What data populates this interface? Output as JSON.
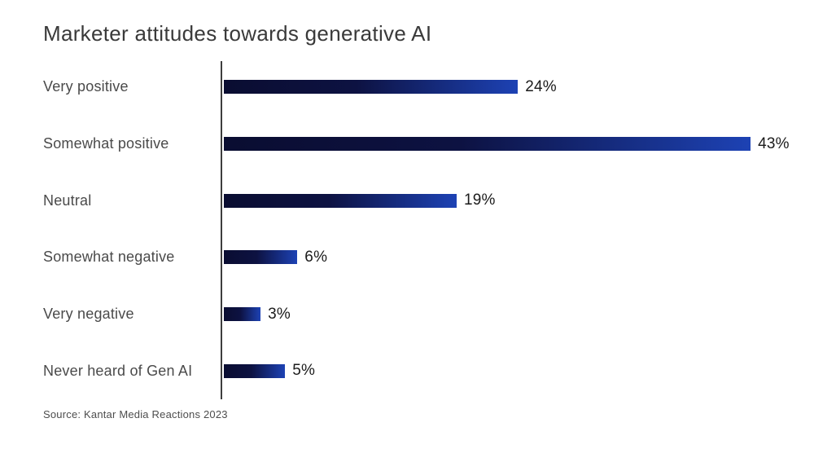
{
  "title": "Marketer attitudes towards generative AI",
  "source": "Source: Kantar Media Reactions 2023",
  "colors": {
    "bar_gradient_start": "#0a0d31",
    "bar_gradient_mid": "#0d1242",
    "bar_gradient_end": "#1d42b4",
    "axis_line": "#3d3d3d",
    "title_text": "#3a3a3a",
    "category_text": "#4a4a4a",
    "value_text": "#1b1b1b",
    "background": "#ffffff"
  },
  "chart_data": {
    "type": "bar",
    "orientation": "horizontal",
    "title": "Marketer attitudes towards generative AI",
    "categories": [
      "Very positive",
      "Somewhat positive",
      "Neutral",
      "Somewhat negative",
      "Very negative",
      "Never heard of Gen AI"
    ],
    "values": [
      24,
      43,
      19,
      6,
      3,
      5
    ],
    "value_labels": [
      "24%",
      "43%",
      "19%",
      "6%",
      "3%",
      "5%"
    ],
    "xlabel": "",
    "ylabel": "",
    "xlim": [
      0,
      48
    ],
    "grid": false,
    "legend": false,
    "annotation": "Source: Kantar Media Reactions 2023"
  }
}
